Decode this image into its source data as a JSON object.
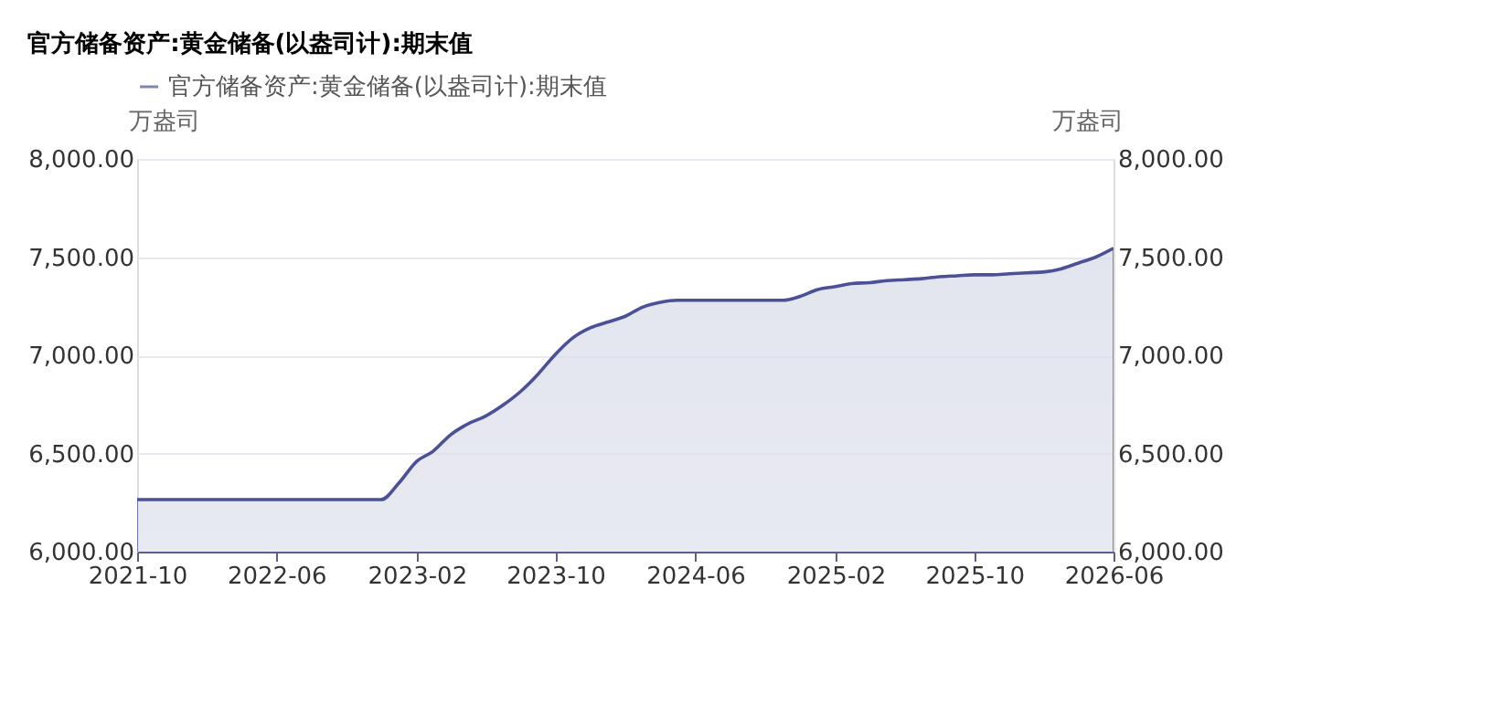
{
  "chart_data": {
    "type": "area",
    "title": "官方储备资产:黄金储备(以盎司计):期末值",
    "ylabel": "万盎司",
    "y2label": "万盎司",
    "x": [
      "2021-10",
      "2021-11",
      "2021-12",
      "2022-01",
      "2022-02",
      "2022-03",
      "2022-04",
      "2022-05",
      "2022-06",
      "2022-07",
      "2022-08",
      "2022-09",
      "2022-10",
      "2022-11",
      "2022-12",
      "2023-01",
      "2023-02",
      "2023-03",
      "2023-04",
      "2023-05",
      "2023-06",
      "2023-07",
      "2023-08",
      "2023-09",
      "2023-10",
      "2023-11",
      "2023-12",
      "2024-01",
      "2024-02",
      "2024-03",
      "2024-04",
      "2024-05",
      "2024-06",
      "2024-07",
      "2024-08",
      "2024-09",
      "2024-10",
      "2024-11",
      "2024-12",
      "2025-01",
      "2025-02",
      "2025-03",
      "2025-04",
      "2025-05",
      "2025-06",
      "2025-07",
      "2025-08",
      "2025-09",
      "2025-10",
      "2025-11",
      "2025-12",
      "2026-01",
      "2026-02",
      "2026-03",
      "2026-04",
      "2026-05",
      "2026-06"
    ],
    "series": [
      {
        "name": "官方储备资产:黄金储备(以盎司计):期末值",
        "color": "#4a5196",
        "values": [
          6265,
          6265,
          6265,
          6265,
          6265,
          6265,
          6265,
          6265,
          6265,
          6265,
          6265,
          6265,
          6265,
          6265,
          6265,
          6350,
          6460,
          6510,
          6595,
          6650,
          6690,
          6745,
          6815,
          6905,
          7005,
          7090,
          7140,
          7170,
          7200,
          7245,
          7270,
          7280,
          7280,
          7280,
          7280,
          7280,
          7280,
          7280,
          7300,
          7335,
          7350,
          7365,
          7370,
          7380,
          7385,
          7390,
          7400,
          7405,
          7410,
          7410,
          7415,
          7420,
          7425,
          7440,
          7470,
          7500,
          7545
        ]
      }
    ],
    "xlim": [
      "2021-10",
      "2026-06"
    ],
    "xticks": [
      "2021-10",
      "2022-06",
      "2023-02",
      "2023-10",
      "2024-06",
      "2025-02",
      "2025-10",
      "2026-06"
    ],
    "ylim": [
      6000,
      8000
    ],
    "yticks": [
      {
        "value": 6000,
        "label": "6,000.00"
      },
      {
        "value": 6500,
        "label": "6,500.00"
      },
      {
        "value": 7000,
        "label": "7,000.00"
      },
      {
        "value": 7500,
        "label": "7,500.00"
      },
      {
        "value": 8000,
        "label": "8,000.00"
      }
    ],
    "y2lim": [
      6000,
      8000
    ],
    "y2ticks": [
      {
        "value": 6000,
        "label": "6,000.00"
      },
      {
        "value": 6500,
        "label": "6,500.00"
      },
      {
        "value": 7000,
        "label": "7,000.00"
      },
      {
        "value": 7500,
        "label": "7,500.00"
      },
      {
        "value": 8000,
        "label": "8,000.00"
      }
    ],
    "grid": "y",
    "legend": "top"
  }
}
